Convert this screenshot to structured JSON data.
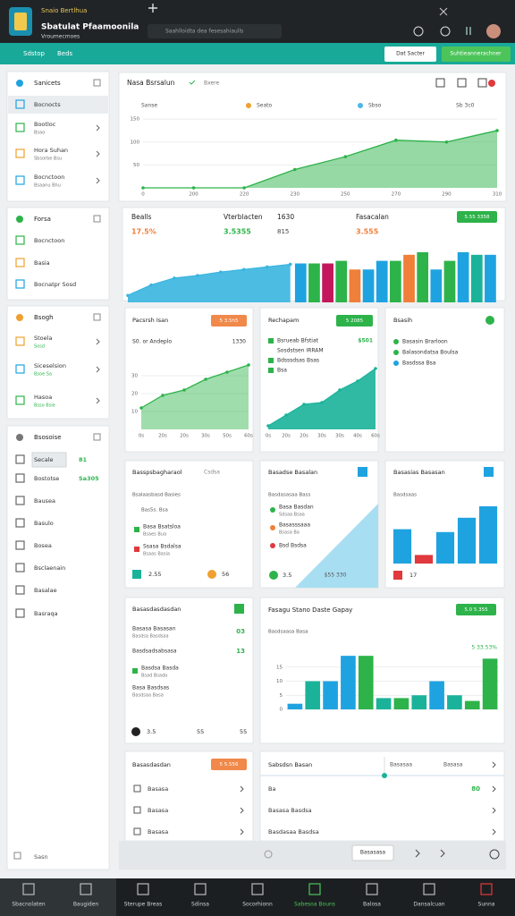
{
  "window": {
    "tab_title": "Snaio Bertlhua",
    "app_title": "Sbatulat Pfaamoonila",
    "app_subtitle": "Vroumecmoes",
    "address": "Saahlloidta dea fesesahiaulls"
  },
  "toolbar": {
    "links": [
      "Sdstop",
      "Beds"
    ],
    "secondary_button": "Dat Sacter",
    "primary_button": "Suhtieannerachner"
  },
  "sidebar": {
    "groups": [
      {
        "title": "Sanicets",
        "items": [
          {
            "label": "Bocnocts"
          },
          {
            "label": "Bootloc",
            "sub": "Bsao"
          },
          {
            "label": "Hora Suhan",
            "sub": "Sbsorbe Bsu"
          },
          {
            "label": "Bocnctoon",
            "sub": "Bsaanu Bhu"
          }
        ]
      },
      {
        "title": "Forsa",
        "items": [
          {
            "label": "Bocnctoon"
          },
          {
            "label": "Basia"
          },
          {
            "label": "Bocnatpr Sosd"
          }
        ]
      },
      {
        "title": "Bsogh",
        "items": [
          {
            "label": "Stoela",
            "sub": "Sosd"
          },
          {
            "label": "Siceselsion",
            "sub": "Bsoe Sa"
          },
          {
            "label": "Hasoa",
            "sub": "Bsso Bsie"
          }
        ]
      },
      {
        "title": "Bsosoise",
        "items": [
          {
            "label": "Secale",
            "badge": "81"
          },
          {
            "label": "Bostotse",
            "badge": "Sa305"
          },
          {
            "label": "Bausea"
          },
          {
            "label": "Basulo"
          },
          {
            "label": "Bosea"
          },
          {
            "label": "Bsclaenain"
          },
          {
            "label": "Basalae"
          },
          {
            "label": "Basraqa"
          }
        ]
      }
    ],
    "footer": "Sasn"
  },
  "overview": {
    "title": "Nasa Bsrsalun",
    "subtitle": "Bxere",
    "legend": [
      {
        "name": "Sanse",
        "color": "#9aa0a6"
      },
      {
        "name": "Seato",
        "color": "#f0a030"
      },
      {
        "name": "Sbso",
        "color": "#4ab8e8"
      }
    ],
    "range": "Sb 3c0",
    "chart": {
      "type": "area",
      "color": "#2db34a",
      "ylim": [
        0,
        160
      ],
      "yticks": [
        50,
        100,
        150
      ],
      "categories": [
        "0",
        "200",
        "220",
        "230",
        "250",
        "270",
        "290",
        "310"
      ],
      "values": [
        0,
        0,
        0,
        40,
        68,
        104,
        100,
        125
      ]
    }
  },
  "summary": {
    "metrics": [
      {
        "label": "Bealls",
        "value": "17.5%",
        "color": "#f07f3a"
      },
      {
        "label": "Vterblacten",
        "value": "3.5355",
        "note": "1630",
        "extra": "815",
        "color": "#2db34a"
      },
      {
        "label": "Fasacalan",
        "value": "3.555",
        "color": "#f07f3a"
      }
    ],
    "button": "5.55 3358",
    "chart": {
      "type": "combo",
      "ylim": [
        0,
        60
      ],
      "line_color": "#3ab5e0",
      "line_values": [
        8,
        20,
        28,
        31,
        35,
        38,
        41,
        44
      ],
      "values": [
        45,
        45,
        45,
        48,
        38,
        38,
        48,
        48,
        55,
        58,
        38,
        48,
        58,
        55,
        55
      ],
      "colors": [
        "#1fa3e0",
        "#2db34a",
        "#c2185b",
        "#2db34a",
        "#f07f3a",
        "#1fa3e0",
        "#1fa3e0",
        "#2db34a",
        "#f07f3a",
        "#2db34a",
        "#1fa3e0",
        "#2db34a",
        "#1fa3e0",
        "#1ab39a",
        "#1fa3e0"
      ]
    }
  },
  "traffic_card": {
    "title": "Pacsrsh Isan",
    "badge": "5 3.5h5",
    "subtitle": "S0. or Andeplo",
    "figure": "1330",
    "chart": {
      "type": "area",
      "color": "#2db34a",
      "ylim": [
        0,
        40
      ],
      "yticks": [
        10,
        20,
        30
      ],
      "categories": [
        "0s",
        "20s",
        "20s",
        "30s",
        "50s",
        "60s"
      ],
      "values": [
        12,
        19,
        22,
        28,
        32,
        36
      ]
    }
  },
  "plan_card": {
    "title": "Rechapam",
    "button": "5 2085",
    "figure": "$501",
    "items": [
      {
        "label": "Bsrueab Bfstiat",
        "dot": "#2db34a"
      },
      {
        "label": "Sosdstsen IRRAM"
      },
      {
        "label": "Bdsssdsas Bsas",
        "dot": "#2db34a"
      },
      {
        "label": "Bsa",
        "dot": "#2db34a"
      }
    ],
    "chart": {
      "type": "area",
      "color": "#1ab39a",
      "ylim": [
        0,
        40
      ],
      "categories": [
        "0s",
        "20s",
        "20s",
        "30s",
        "30s",
        "40s",
        "60s"
      ],
      "values": [
        2,
        8,
        14,
        15,
        22,
        27,
        34
      ]
    }
  },
  "status_card": {
    "title": "Bsasih",
    "items": [
      {
        "label": "Basasin Brarloon",
        "dot": "#2db34a"
      },
      {
        "label": "Balasondatsa Boulsa",
        "dot": "#2db34a"
      },
      {
        "label": "Basdssa Bsa",
        "dot": "#1fa3e0"
      }
    ]
  },
  "split_card": {
    "title": "Basspsbagharaol",
    "action": "Csdsa",
    "subtitle": "Bsalaasbasd Basies",
    "note": "Bas5s. Bsa",
    "items": [
      {
        "label": "Basa Bsatsloa",
        "sub": "Bsaes Bua",
        "dot": "#2db34a"
      },
      {
        "label": "Ssasa Bsdalsa",
        "sub": "Bsaas Basia",
        "dot": "#e0393e"
      }
    ],
    "footer": [
      "2.55",
      "56"
    ]
  },
  "mix_card": {
    "title": "Basadse Basalan",
    "subtitle": "Basdasasaa Bass",
    "items": [
      {
        "label": "Basa Basdan",
        "sub": "Sdsaa Bsaa",
        "dot": "#2db34a"
      },
      {
        "label": "Basasssaaa",
        "sub": "Bsasa Ba",
        "dot": "#f07f3a"
      },
      {
        "label": "Bsd Bsdsa",
        "dot": "#e0393e"
      }
    ],
    "footer": [
      "3.5",
      "$55 330"
    ]
  },
  "stack_card": {
    "title": "Basasias Basasan",
    "subtitle": "Basdsaas",
    "footer": "17",
    "chart": {
      "type": "bar",
      "ylim": [
        0,
        50
      ],
      "values": [
        24,
        6,
        22,
        32,
        40
      ],
      "colors": [
        "#1fa3e0",
        "#e0393e",
        "#1fa3e0",
        "#1fa3e0",
        "#1fa3e0"
      ]
    }
  },
  "ledger_card": {
    "title": "Basasdasdasdan",
    "items": [
      {
        "label": "Basasa Basasan",
        "sub": "Basdsa Basdsaa",
        "value": "03"
      },
      {
        "label": "Basdsadsabsasa",
        "value": "13"
      },
      {
        "label": "Basdsa Basda",
        "sub": "Bsad Bsada",
        "dot": "#2db34a"
      },
      {
        "label": "Basa Basdsas",
        "sub": "Basdsaa Basa"
      }
    ],
    "footer": [
      "3.5",
      "55",
      "55"
    ]
  },
  "revenue_card": {
    "title": "Fasagu Stano Daste Gapay",
    "button": "5.0 5.355",
    "subtitle": "Basdsaasa Basa",
    "figure": "5 33.53%",
    "chart": {
      "type": "bar",
      "ylim": [
        0,
        20
      ],
      "yticks": [
        0,
        5,
        10,
        15
      ],
      "values": [
        2,
        10,
        10,
        19,
        19,
        4,
        4,
        5,
        10,
        5,
        3,
        18
      ],
      "colors": [
        "#1fa3e0",
        "#1ab39a",
        "#1fa3e0",
        "#1fa3e0",
        "#2db34a",
        "#1ab39a",
        "#2db34a",
        "#1ab39a",
        "#1fa3e0",
        "#1ab39a",
        "#2db34a",
        "#2db34a"
      ]
    }
  },
  "menu_card": {
    "title": "Basasdasdan",
    "badge": "5 5.556",
    "items": [
      "Basasa",
      "Basasa",
      "Basasa"
    ]
  },
  "settings_card": {
    "title": "Sabsdsn Basan",
    "tabs": [
      "Basasaa",
      "Basasa"
    ],
    "rows": [
      {
        "label": "Ba",
        "value": "80"
      },
      {
        "label": "Basasa Basdsa"
      },
      {
        "label": "Basdasaa Basdsa"
      }
    ]
  },
  "pager": {
    "button": "Basasasa"
  },
  "taskbar": [
    {
      "label": "Sbacnolaten"
    },
    {
      "label": "Baugiden"
    },
    {
      "label": "Sterupe Breas"
    },
    {
      "label": "Sdinsa"
    },
    {
      "label": "Socorhionn"
    },
    {
      "label": "Sabesoa Bouns",
      "active": true
    },
    {
      "label": "Balosa"
    },
    {
      "label": "Dansalcuan"
    },
    {
      "label": "Sunna"
    }
  ]
}
